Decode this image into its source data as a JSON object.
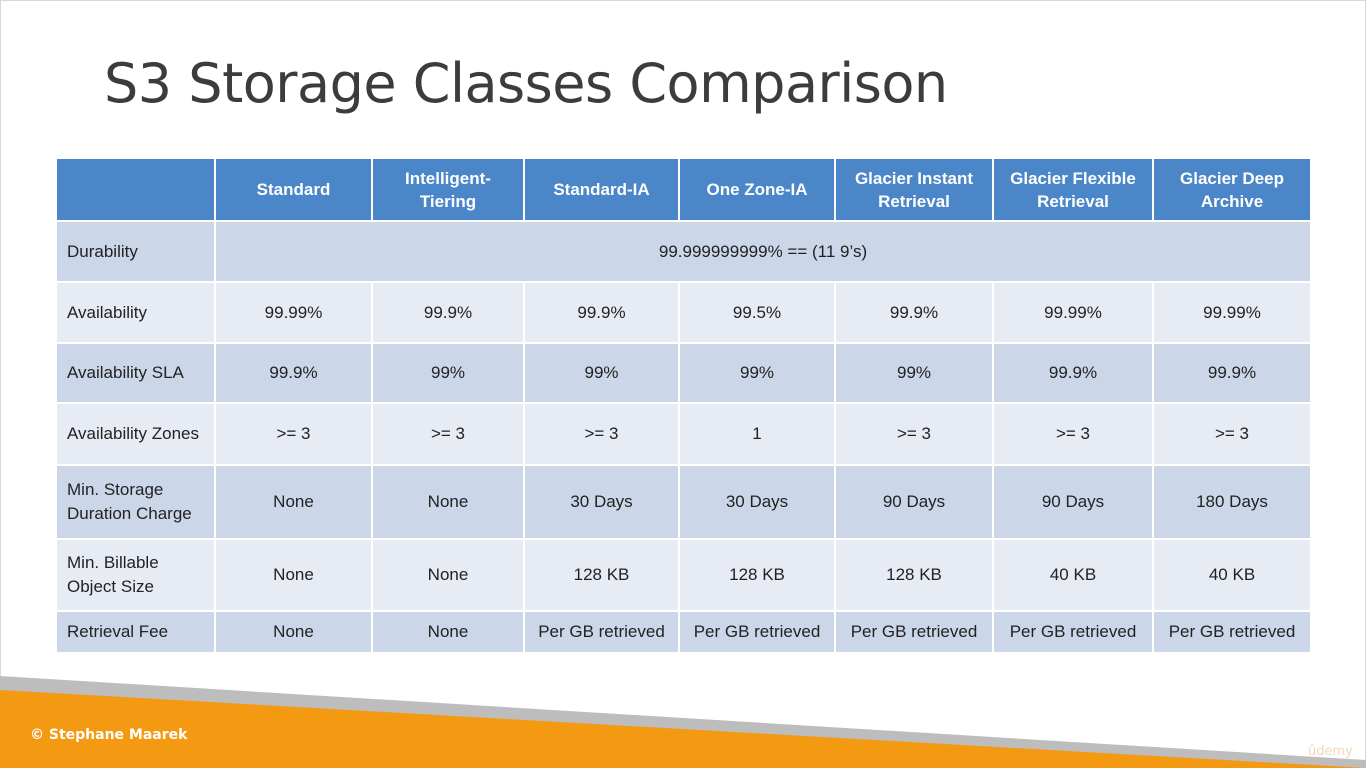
{
  "slide": {
    "title": "S3 Storage Classes Comparison",
    "copyright": "© Stephane Maarek",
    "watermark": "ûdemy"
  },
  "table": {
    "headers": [
      "",
      "Standard",
      "Intelligent-Tiering",
      "Standard-IA",
      "One Zone-IA",
      "Glacier Instant Retrieval",
      "Glacier Flexible Retrieval",
      "Glacier Deep Archive"
    ],
    "durability": {
      "label": "Durability",
      "value": "99.999999999% == (11 9’s)"
    },
    "rows": [
      {
        "label": "Availability",
        "cells": [
          "99.99%",
          "99.9%",
          "99.9%",
          "99.5%",
          "99.9%",
          "99.99%",
          "99.99%"
        ]
      },
      {
        "label": "Availability SLA",
        "cells": [
          "99.9%",
          "99%",
          "99%",
          "99%",
          "99%",
          "99.9%",
          "99.9%"
        ]
      },
      {
        "label": "Availability Zones",
        "cells": [
          ">= 3",
          ">= 3",
          ">= 3",
          "1",
          ">= 3",
          ">= 3",
          ">= 3"
        ]
      },
      {
        "label": "Min. Storage Duration Charge",
        "cells": [
          "None",
          "None",
          "30 Days",
          "30 Days",
          "90 Days",
          "90 Days",
          "180 Days"
        ]
      },
      {
        "label": "Min. Billable Object Size",
        "cells": [
          "None",
          "None",
          "128 KB",
          "128 KB",
          "128 KB",
          "40 KB",
          "40 KB"
        ]
      },
      {
        "label": "Retrieval Fee",
        "cells": [
          "None",
          "None",
          "Per GB retrieved",
          "Per GB retrieved",
          "Per GB retrieved",
          "Per GB retrieved",
          "Per GB retrieved"
        ]
      }
    ]
  },
  "colors": {
    "header_blue": "#4a86c8",
    "row_dark": "#cbd6e9",
    "row_light": "#e7ebf3",
    "footer_orange": "#f39a12",
    "footer_gray": "#bdbdbd"
  }
}
